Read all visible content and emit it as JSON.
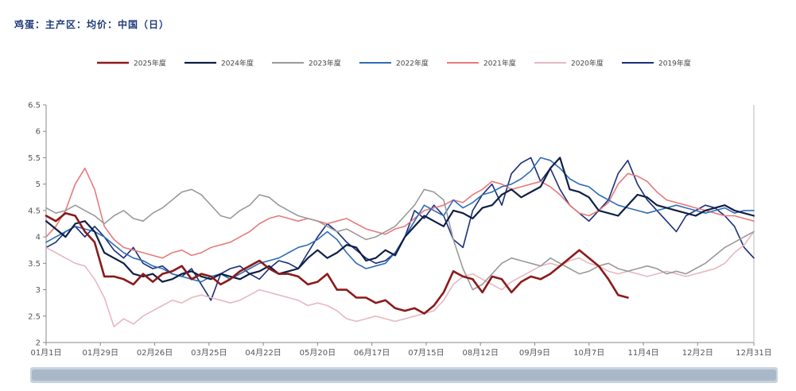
{
  "title": "鸡蛋：主产区：均价：中国（日）",
  "chart_data": {
    "type": "line",
    "ylim": [
      2,
      6.5
    ],
    "yticks": [
      2,
      2.5,
      3,
      3.5,
      4,
      4.5,
      5,
      5.5,
      6,
      6.5
    ],
    "ytick_labels": [
      "2",
      "2.5",
      "3",
      "3.5",
      "4",
      "4.5",
      "5",
      "5.5",
      "6",
      "6.5"
    ],
    "xlim": [
      0,
      365
    ],
    "xticks": [
      0,
      28,
      56,
      84,
      112,
      140,
      168,
      196,
      224,
      252,
      280,
      308,
      336,
      365
    ],
    "xtick_labels": [
      "01月1日",
      "01月29日",
      "02月26日",
      "03月25日",
      "04月22日",
      "05月20日",
      "06月17日",
      "07月15日",
      "08月12日",
      "09月9日",
      "10月7日",
      "11月4日",
      "12月2日",
      "12月31日"
    ],
    "grid": false,
    "legend_position": "top",
    "series": [
      {
        "name": "2025年度",
        "color": "#8b1a1a",
        "width": 2.6,
        "x": [
          0,
          5,
          10,
          15,
          20,
          25,
          30,
          35,
          40,
          45,
          50,
          55,
          60,
          65,
          70,
          75,
          80,
          85,
          90,
          95,
          100,
          105,
          110,
          115,
          120,
          125,
          130,
          135,
          140,
          145,
          150,
          155,
          160,
          165,
          170,
          175,
          180,
          185,
          190,
          195,
          200,
          205,
          210,
          215,
          220,
          225,
          230,
          235,
          240,
          245,
          250,
          255,
          260,
          265,
          270,
          275,
          280,
          285,
          290,
          295,
          300
        ],
        "y": [
          4.4,
          4.3,
          4.45,
          4.4,
          4.1,
          3.9,
          3.25,
          3.25,
          3.2,
          3.1,
          3.3,
          3.15,
          3.3,
          3.35,
          3.45,
          3.2,
          3.3,
          3.25,
          3.1,
          3.2,
          3.35,
          3.45,
          3.55,
          3.4,
          3.3,
          3.3,
          3.25,
          3.1,
          3.15,
          3.3,
          3.0,
          3.0,
          2.85,
          2.85,
          2.75,
          2.8,
          2.65,
          2.6,
          2.65,
          2.55,
          2.7,
          2.95,
          3.35,
          3.25,
          3.2,
          2.95,
          3.25,
          3.2,
          2.95,
          3.15,
          3.25,
          3.2,
          3.3,
          3.45,
          3.6,
          3.75,
          3.6,
          3.45,
          3.2,
          2.9,
          2.85
        ]
      },
      {
        "name": "2024年度",
        "color": "#0f1f45",
        "width": 2.2,
        "x": [
          0,
          5,
          10,
          15,
          20,
          25,
          30,
          35,
          40,
          45,
          50,
          55,
          60,
          65,
          70,
          75,
          80,
          85,
          90,
          95,
          100,
          105,
          110,
          115,
          120,
          125,
          130,
          135,
          140,
          145,
          150,
          155,
          160,
          165,
          170,
          175,
          180,
          185,
          190,
          195,
          200,
          205,
          210,
          215,
          220,
          225,
          230,
          235,
          240,
          245,
          250,
          255,
          260,
          265,
          270,
          275,
          280,
          285,
          290,
          295,
          300,
          305,
          310,
          315,
          320,
          325,
          330,
          335,
          340,
          345,
          350,
          355,
          360,
          365
        ],
        "y": [
          4.3,
          4.15,
          4.0,
          4.25,
          4.3,
          4.1,
          3.7,
          3.6,
          3.5,
          3.3,
          3.25,
          3.3,
          3.15,
          3.2,
          3.3,
          3.35,
          3.25,
          3.2,
          3.3,
          3.25,
          3.2,
          3.3,
          3.35,
          3.45,
          3.3,
          3.35,
          3.4,
          3.6,
          3.75,
          3.6,
          3.7,
          3.85,
          3.8,
          3.55,
          3.6,
          3.75,
          3.65,
          4.0,
          4.2,
          4.4,
          4.3,
          4.2,
          4.5,
          4.45,
          4.35,
          4.55,
          4.6,
          4.8,
          4.9,
          4.75,
          4.85,
          4.95,
          5.3,
          5.5,
          4.9,
          4.85,
          4.75,
          4.5,
          4.45,
          4.4,
          4.6,
          4.8,
          4.75,
          4.6,
          4.55,
          4.5,
          4.45,
          4.4,
          4.5,
          4.55,
          4.6,
          4.5,
          4.45,
          4.4
        ]
      },
      {
        "name": "2023年度",
        "color": "#9a9a9a",
        "width": 1.6,
        "x": [
          0,
          5,
          10,
          15,
          20,
          25,
          30,
          35,
          40,
          45,
          50,
          55,
          60,
          65,
          70,
          75,
          80,
          85,
          90,
          95,
          100,
          105,
          110,
          115,
          120,
          125,
          130,
          135,
          140,
          145,
          150,
          155,
          160,
          165,
          170,
          175,
          180,
          185,
          190,
          195,
          200,
          205,
          210,
          215,
          220,
          225,
          230,
          235,
          240,
          245,
          250,
          255,
          260,
          265,
          270,
          275,
          280,
          285,
          290,
          295,
          300,
          305,
          310,
          315,
          320,
          325,
          330,
          335,
          340,
          345,
          350,
          355,
          360,
          365
        ],
        "y": [
          4.55,
          4.45,
          4.5,
          4.6,
          4.5,
          4.4,
          4.25,
          4.4,
          4.5,
          4.35,
          4.3,
          4.45,
          4.55,
          4.7,
          4.85,
          4.9,
          4.8,
          4.6,
          4.4,
          4.35,
          4.5,
          4.6,
          4.8,
          4.75,
          4.6,
          4.5,
          4.4,
          4.35,
          4.3,
          4.2,
          4.1,
          4.15,
          4.05,
          3.95,
          4.0,
          4.1,
          4.2,
          4.4,
          4.6,
          4.9,
          4.85,
          4.7,
          3.95,
          3.4,
          3.0,
          3.1,
          3.3,
          3.5,
          3.6,
          3.55,
          3.5,
          3.45,
          3.6,
          3.5,
          3.4,
          3.3,
          3.35,
          3.45,
          3.5,
          3.4,
          3.35,
          3.4,
          3.45,
          3.4,
          3.3,
          3.35,
          3.3,
          3.4,
          3.5,
          3.65,
          3.8,
          3.9,
          4.0,
          4.1
        ]
      },
      {
        "name": "2022年度",
        "color": "#2f6db5",
        "width": 1.6,
        "x": [
          0,
          5,
          10,
          15,
          20,
          25,
          30,
          35,
          40,
          45,
          50,
          55,
          60,
          65,
          70,
          75,
          80,
          85,
          90,
          95,
          100,
          105,
          110,
          115,
          120,
          125,
          130,
          135,
          140,
          145,
          150,
          155,
          160,
          165,
          170,
          175,
          180,
          185,
          190,
          195,
          200,
          205,
          210,
          215,
          220,
          225,
          230,
          235,
          240,
          245,
          250,
          255,
          260,
          265,
          270,
          275,
          280,
          285,
          290,
          295,
          300,
          305,
          310,
          315,
          320,
          325,
          330,
          335,
          340,
          345,
          350,
          355,
          360,
          365
        ],
        "y": [
          3.9,
          4.0,
          4.1,
          4.2,
          4.15,
          4.1,
          4.0,
          3.85,
          3.7,
          3.6,
          3.55,
          3.45,
          3.4,
          3.3,
          3.25,
          3.2,
          3.15,
          3.25,
          3.3,
          3.2,
          3.3,
          3.4,
          3.5,
          3.55,
          3.6,
          3.7,
          3.8,
          3.85,
          3.95,
          4.1,
          3.95,
          3.7,
          3.5,
          3.4,
          3.45,
          3.5,
          3.7,
          4.0,
          4.3,
          4.6,
          4.5,
          4.4,
          4.7,
          4.55,
          4.65,
          4.8,
          4.85,
          4.95,
          5.0,
          5.1,
          5.25,
          5.5,
          5.45,
          5.3,
          5.1,
          5.0,
          4.95,
          4.8,
          4.7,
          4.6,
          4.55,
          4.5,
          4.45,
          4.5,
          4.55,
          4.6,
          4.55,
          4.5,
          4.45,
          4.5,
          4.55,
          4.45,
          4.5,
          4.5
        ]
      },
      {
        "name": "2021年度",
        "color": "#e87a7a",
        "width": 1.6,
        "x": [
          0,
          5,
          10,
          15,
          20,
          25,
          30,
          35,
          40,
          45,
          50,
          55,
          60,
          65,
          70,
          75,
          80,
          85,
          90,
          95,
          100,
          105,
          110,
          115,
          120,
          125,
          130,
          135,
          140,
          145,
          150,
          155,
          160,
          165,
          170,
          175,
          180,
          185,
          190,
          195,
          200,
          205,
          210,
          215,
          220,
          225,
          230,
          235,
          240,
          245,
          250,
          255,
          260,
          265,
          270,
          275,
          280,
          285,
          290,
          295,
          300,
          305,
          310,
          315,
          320,
          325,
          330,
          335,
          340,
          345,
          350,
          355,
          360,
          365
        ],
        "y": [
          4.0,
          4.2,
          4.5,
          5.0,
          5.3,
          4.9,
          4.2,
          3.95,
          3.8,
          3.75,
          3.7,
          3.65,
          3.6,
          3.7,
          3.75,
          3.65,
          3.7,
          3.8,
          3.85,
          3.9,
          4.0,
          4.1,
          4.25,
          4.35,
          4.4,
          4.35,
          4.3,
          4.35,
          4.3,
          4.25,
          4.3,
          4.35,
          4.25,
          4.15,
          4.1,
          4.05,
          4.15,
          4.2,
          4.35,
          4.5,
          4.55,
          4.6,
          4.7,
          4.65,
          4.8,
          4.9,
          5.05,
          5.0,
          4.9,
          4.95,
          5.0,
          5.05,
          4.95,
          4.8,
          4.6,
          4.45,
          4.4,
          4.5,
          4.65,
          5.0,
          5.2,
          5.15,
          5.05,
          4.85,
          4.7,
          4.65,
          4.6,
          4.55,
          4.5,
          4.45,
          4.4,
          4.4,
          4.35,
          4.3
        ]
      },
      {
        "name": "2020年度",
        "color": "#e6b8c0",
        "width": 1.6,
        "x": [
          0,
          5,
          10,
          15,
          20,
          25,
          30,
          35,
          40,
          45,
          50,
          55,
          60,
          65,
          70,
          75,
          80,
          85,
          90,
          95,
          100,
          105,
          110,
          115,
          120,
          125,
          130,
          135,
          140,
          145,
          150,
          155,
          160,
          165,
          170,
          175,
          180,
          185,
          190,
          195,
          200,
          205,
          210,
          215,
          220,
          225,
          230,
          235,
          240,
          245,
          250,
          255,
          260,
          265,
          270,
          275,
          280,
          285,
          290,
          295,
          300,
          305,
          310,
          315,
          320,
          325,
          330,
          335,
          340,
          345,
          350,
          355,
          360,
          365
        ],
        "y": [
          3.8,
          3.7,
          3.6,
          3.5,
          3.45,
          3.2,
          2.85,
          2.3,
          2.45,
          2.35,
          2.5,
          2.6,
          2.7,
          2.8,
          2.75,
          2.85,
          2.9,
          2.85,
          2.8,
          2.75,
          2.8,
          2.9,
          3.0,
          2.95,
          2.9,
          2.85,
          2.8,
          2.7,
          2.75,
          2.7,
          2.6,
          2.45,
          2.4,
          2.45,
          2.5,
          2.45,
          2.4,
          2.45,
          2.5,
          2.55,
          2.6,
          2.8,
          3.1,
          3.25,
          3.3,
          3.2,
          3.1,
          3.0,
          3.15,
          3.25,
          3.35,
          3.45,
          3.5,
          3.45,
          3.55,
          3.6,
          3.5,
          3.45,
          3.35,
          3.3,
          3.35,
          3.3,
          3.25,
          3.3,
          3.35,
          3.3,
          3.25,
          3.3,
          3.35,
          3.4,
          3.5,
          3.7,
          3.85,
          4.1
        ]
      },
      {
        "name": "2019年度",
        "color": "#1b2f7a",
        "width": 1.6,
        "x": [
          0,
          5,
          10,
          15,
          20,
          25,
          30,
          35,
          40,
          45,
          50,
          55,
          60,
          65,
          70,
          75,
          80,
          85,
          90,
          95,
          100,
          105,
          110,
          115,
          120,
          125,
          130,
          135,
          140,
          145,
          150,
          155,
          160,
          165,
          170,
          175,
          180,
          185,
          190,
          195,
          200,
          205,
          210,
          215,
          220,
          225,
          230,
          235,
          240,
          245,
          250,
          255,
          260,
          265,
          270,
          275,
          280,
          285,
          290,
          295,
          300,
          305,
          310,
          315,
          320,
          325,
          330,
          335,
          340,
          345,
          350,
          355,
          360,
          365
        ],
        "y": [
          3.8,
          3.9,
          4.1,
          4.2,
          4.0,
          4.2,
          4.0,
          3.75,
          3.6,
          3.8,
          3.5,
          3.4,
          3.45,
          3.3,
          3.25,
          3.4,
          3.1,
          2.8,
          3.3,
          3.4,
          3.45,
          3.3,
          3.2,
          3.4,
          3.55,
          3.5,
          3.4,
          3.7,
          4.0,
          4.25,
          4.1,
          3.9,
          3.75,
          3.6,
          3.5,
          3.55,
          3.7,
          4.0,
          4.5,
          4.35,
          4.6,
          4.4,
          3.95,
          3.8,
          4.5,
          4.8,
          5.0,
          4.6,
          5.2,
          5.4,
          5.5,
          5.05,
          5.3,
          4.9,
          4.6,
          4.45,
          4.3,
          4.5,
          4.7,
          5.2,
          5.45,
          5.0,
          4.7,
          4.5,
          4.3,
          4.1,
          4.4,
          4.5,
          4.6,
          4.55,
          4.4,
          4.2,
          3.8,
          3.6
        ]
      }
    ]
  }
}
